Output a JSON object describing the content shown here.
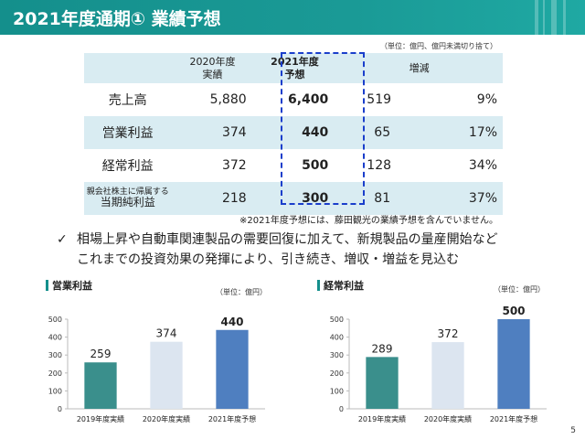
{
  "header": {
    "title": "2021年度通期① 業績予想"
  },
  "table": {
    "unit_note": "（単位：億円、億円未満切り捨て）",
    "columns": {
      "c1_line1": "2020年度",
      "c1_line2": "実績",
      "c2_line1": "2021年度",
      "c2_line2": "予想",
      "c3": "増減"
    },
    "rows": [
      {
        "label": "売上高",
        "actual_2020": "5,880",
        "forecast_2021": "6,400",
        "change": "519",
        "pct": "9%"
      },
      {
        "label": "営業利益",
        "actual_2020": "374",
        "forecast_2021": "440",
        "change": "65",
        "pct": "17%"
      },
      {
        "label": "経常利益",
        "actual_2020": "372",
        "forecast_2021": "500",
        "change": "128",
        "pct": "34%"
      },
      {
        "label_sub": "親会社株主に帰属する",
        "label": "当期純利益",
        "actual_2020": "218",
        "forecast_2021": "300",
        "change": "81",
        "pct": "37%"
      }
    ],
    "footnote": "※2021年度予想には、藤田観光の業績予想を含んでいません。"
  },
  "bullet": {
    "check": "✓",
    "line1": "相場上昇や自動車関連製品の需要回復に加えて、新規製品の量産開始など",
    "line2": "これまでの投資効果の発揮により、引き続き、増収・増益を見込む"
  },
  "chart_data": [
    {
      "type": "bar",
      "title": "営業利益",
      "unit": "（単位：億円）",
      "categories": [
        "2019年度実績",
        "2020年度実績",
        "2021年度予想"
      ],
      "values": [
        259,
        374,
        440
      ],
      "data_labels": [
        "259",
        "374",
        "440"
      ],
      "bold_label_index": 2,
      "colors": [
        "#3a8f8c",
        "#dce5f0",
        "#4f7fc0"
      ],
      "ylim": [
        0,
        500
      ],
      "yticks": [
        0,
        100,
        200,
        300,
        400,
        500
      ],
      "ytick_labels": [
        "0",
        "100",
        "200",
        "300",
        "400",
        "500"
      ],
      "xlabel": "",
      "ylabel": ""
    },
    {
      "type": "bar",
      "title": "経常利益",
      "unit": "（単位：億円）",
      "categories": [
        "2019年度実績",
        "2020年度実績",
        "2021年度予想"
      ],
      "values": [
        289,
        372,
        500
      ],
      "data_labels": [
        "289",
        "372",
        "500"
      ],
      "bold_label_index": 2,
      "colors": [
        "#3a8f8c",
        "#dce5f0",
        "#4f7fc0"
      ],
      "ylim": [
        0,
        500
      ],
      "yticks": [
        0,
        100,
        200,
        300,
        400,
        500
      ],
      "ytick_labels": [
        "0",
        "100",
        "200",
        "300",
        "400",
        "500"
      ],
      "xlabel": "",
      "ylabel": ""
    }
  ],
  "page_number": "5"
}
